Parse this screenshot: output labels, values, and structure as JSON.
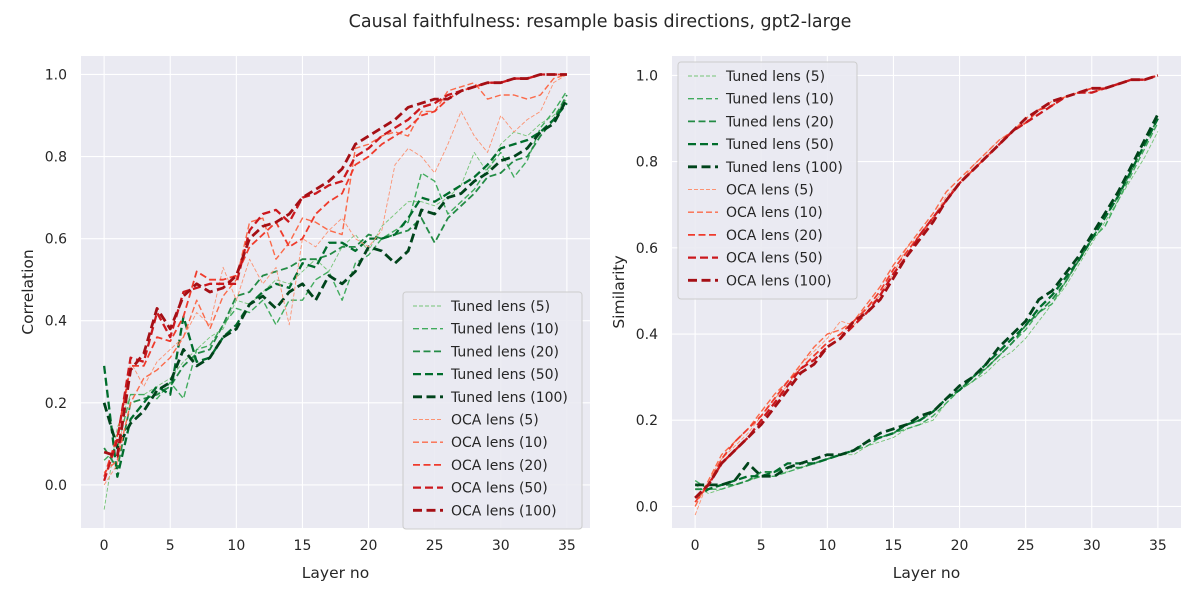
{
  "figure": {
    "suptitle": "Causal faithfulness: resample basis directions, gpt2-large"
  },
  "chart_data": [
    {
      "type": "line",
      "title": "",
      "xlabel": "Layer no",
      "ylabel": "Correlation",
      "xlim": [
        -1.75,
        36.75
      ],
      "ylim": [
        -0.105,
        1.045
      ],
      "xticks": [
        0,
        5,
        10,
        15,
        20,
        25,
        30,
        35
      ],
      "xtick_labels": [
        "0",
        "5",
        "10",
        "15",
        "20",
        "25",
        "30",
        "35"
      ],
      "yticks": [
        0.0,
        0.2,
        0.4,
        0.6,
        0.8,
        1.0
      ],
      "ytick_labels": [
        "0.0",
        "0.2",
        "0.4",
        "0.6",
        "0.8",
        "1.0"
      ],
      "grid": true,
      "legend_position": "lower-right",
      "x": [
        0,
        1,
        2,
        3,
        4,
        5,
        6,
        7,
        8,
        9,
        10,
        11,
        12,
        13,
        14,
        15,
        16,
        17,
        18,
        19,
        20,
        21,
        22,
        23,
        24,
        25,
        26,
        27,
        28,
        29,
        30,
        31,
        32,
        33,
        34,
        35
      ],
      "series": [
        {
          "name": "Tuned lens (5)",
          "family": "tuned",
          "k": 5,
          "values": [
            -0.06,
            0.14,
            0.22,
            0.22,
            0.24,
            0.26,
            0.3,
            0.33,
            0.36,
            0.38,
            0.45,
            0.44,
            0.47,
            0.5,
            0.49,
            0.52,
            0.55,
            0.52,
            0.58,
            0.61,
            0.57,
            0.63,
            0.66,
            0.69,
            0.69,
            0.68,
            0.7,
            0.73,
            0.81,
            0.76,
            0.83,
            0.86,
            0.85,
            0.88,
            0.9,
            0.94
          ]
        },
        {
          "name": "Tuned lens (10)",
          "family": "tuned",
          "k": 10,
          "values": [
            0.06,
            0.09,
            0.22,
            0.22,
            0.21,
            0.25,
            0.21,
            0.33,
            0.34,
            0.39,
            0.43,
            0.42,
            0.45,
            0.39,
            0.45,
            0.45,
            0.5,
            0.52,
            0.45,
            0.54,
            0.56,
            0.6,
            0.62,
            0.64,
            0.76,
            0.74,
            0.66,
            0.69,
            0.72,
            0.77,
            0.81,
            0.75,
            0.79,
            0.87,
            0.91,
            0.96
          ]
        },
        {
          "name": "Tuned lens (20)",
          "family": "tuned",
          "k": 20,
          "values": [
            0.09,
            0.04,
            0.2,
            0.21,
            0.22,
            0.24,
            0.29,
            0.32,
            0.33,
            0.39,
            0.46,
            0.47,
            0.51,
            0.52,
            0.53,
            0.55,
            0.55,
            0.56,
            0.58,
            0.58,
            0.61,
            0.6,
            0.61,
            0.62,
            0.65,
            0.59,
            0.65,
            0.68,
            0.71,
            0.75,
            0.76,
            0.79,
            0.8,
            0.85,
            0.89,
            0.95
          ]
        },
        {
          "name": "Tuned lens (50)",
          "family": "tuned",
          "k": 50,
          "values": [
            0.29,
            0.02,
            0.16,
            0.2,
            0.24,
            0.22,
            0.41,
            0.3,
            0.31,
            0.36,
            0.39,
            0.44,
            0.47,
            0.49,
            0.48,
            0.54,
            0.53,
            0.59,
            0.59,
            0.57,
            0.6,
            0.6,
            0.61,
            0.65,
            0.7,
            0.69,
            0.71,
            0.73,
            0.75,
            0.78,
            0.82,
            0.83,
            0.84,
            0.86,
            0.89,
            0.93
          ]
        },
        {
          "name": "Tuned lens (100)",
          "family": "tuned",
          "k": 100,
          "values": [
            0.2,
            0.09,
            0.15,
            0.18,
            0.23,
            0.25,
            0.33,
            0.29,
            0.31,
            0.36,
            0.38,
            0.44,
            0.46,
            0.43,
            0.47,
            0.49,
            0.45,
            0.51,
            0.49,
            0.52,
            0.58,
            0.57,
            0.54,
            0.57,
            0.67,
            0.66,
            0.7,
            0.71,
            0.74,
            0.76,
            0.79,
            0.8,
            0.82,
            0.86,
            0.88,
            0.94
          ]
        },
        {
          "name": "OCA lens (5)",
          "family": "oca",
          "k": 5,
          "values": [
            0.0,
            0.05,
            0.3,
            0.24,
            0.3,
            0.33,
            0.36,
            0.42,
            0.39,
            0.53,
            0.45,
            0.55,
            0.49,
            0.53,
            0.39,
            0.6,
            0.58,
            0.62,
            0.65,
            0.6,
            0.58,
            0.62,
            0.78,
            0.82,
            0.8,
            0.76,
            0.83,
            0.91,
            0.85,
            0.81,
            0.9,
            0.86,
            0.89,
            0.91,
            0.98,
            1.0
          ]
        },
        {
          "name": "OCA lens (10)",
          "family": "oca",
          "k": 10,
          "values": [
            0.03,
            0.06,
            0.2,
            0.26,
            0.28,
            0.31,
            0.36,
            0.45,
            0.38,
            0.46,
            0.5,
            0.64,
            0.65,
            0.55,
            0.59,
            0.65,
            0.64,
            0.62,
            0.61,
            0.82,
            0.83,
            0.85,
            0.86,
            0.85,
            0.91,
            0.91,
            0.96,
            0.97,
            0.98,
            0.94,
            0.95,
            0.95,
            0.94,
            0.95,
            0.99,
            1.0
          ]
        },
        {
          "name": "OCA lens (20)",
          "family": "oca",
          "k": 20,
          "values": [
            0.02,
            0.12,
            0.29,
            0.29,
            0.36,
            0.35,
            0.41,
            0.52,
            0.5,
            0.5,
            0.51,
            0.58,
            0.61,
            0.64,
            0.58,
            0.6,
            0.66,
            0.69,
            0.71,
            0.78,
            0.8,
            0.83,
            0.85,
            0.87,
            0.9,
            0.91,
            0.94,
            0.96,
            0.97,
            0.98,
            0.98,
            0.99,
            0.99,
            1.0,
            1.0,
            1.0
          ]
        },
        {
          "name": "OCA lens (50)",
          "family": "oca",
          "k": 50,
          "values": [
            0.01,
            0.11,
            0.31,
            0.3,
            0.42,
            0.36,
            0.47,
            0.48,
            0.49,
            0.49,
            0.49,
            0.62,
            0.66,
            0.67,
            0.64,
            0.7,
            0.71,
            0.73,
            0.74,
            0.8,
            0.82,
            0.85,
            0.87,
            0.89,
            0.92,
            0.93,
            0.95,
            0.96,
            0.97,
            0.98,
            0.98,
            0.99,
            0.99,
            1.0,
            1.0,
            1.0
          ]
        },
        {
          "name": "OCA lens (100)",
          "family": "oca",
          "k": 100,
          "values": [
            0.08,
            0.07,
            0.28,
            0.32,
            0.43,
            0.38,
            0.46,
            0.49,
            0.47,
            0.48,
            0.51,
            0.6,
            0.63,
            0.64,
            0.66,
            0.7,
            0.72,
            0.74,
            0.77,
            0.83,
            0.85,
            0.87,
            0.89,
            0.92,
            0.93,
            0.94,
            0.94,
            0.96,
            0.97,
            0.98,
            0.98,
            0.99,
            0.99,
            1.0,
            1.0,
            1.0
          ]
        }
      ]
    },
    {
      "type": "line",
      "title": "",
      "xlabel": "Layer no",
      "ylabel": "Similarity",
      "xlim": [
        -1.75,
        36.75
      ],
      "ylim": [
        -0.05,
        1.045
      ],
      "xticks": [
        0,
        5,
        10,
        15,
        20,
        25,
        30,
        35
      ],
      "xtick_labels": [
        "0",
        "5",
        "10",
        "15",
        "20",
        "25",
        "30",
        "35"
      ],
      "yticks": [
        0.0,
        0.2,
        0.4,
        0.6,
        0.8,
        1.0
      ],
      "ytick_labels": [
        "0.0",
        "0.2",
        "0.4",
        "0.6",
        "0.8",
        "1.0"
      ],
      "grid": true,
      "legend_position": "upper-left",
      "x": [
        0,
        1,
        2,
        3,
        4,
        5,
        6,
        7,
        8,
        9,
        10,
        11,
        12,
        13,
        14,
        15,
        16,
        17,
        18,
        19,
        20,
        21,
        22,
        23,
        24,
        25,
        26,
        27,
        28,
        29,
        30,
        31,
        32,
        33,
        34,
        35
      ],
      "series": [
        {
          "name": "Tuned lens (5)",
          "family": "tuned",
          "k": 5,
          "values": [
            0.05,
            0.03,
            0.04,
            0.05,
            0.06,
            0.07,
            0.08,
            0.08,
            0.09,
            0.1,
            0.11,
            0.12,
            0.12,
            0.14,
            0.15,
            0.16,
            0.18,
            0.19,
            0.2,
            0.24,
            0.27,
            0.29,
            0.31,
            0.34,
            0.36,
            0.39,
            0.43,
            0.47,
            0.51,
            0.56,
            0.61,
            0.66,
            0.71,
            0.76,
            0.81,
            0.87
          ]
        },
        {
          "name": "Tuned lens (10)",
          "family": "tuned",
          "k": 10,
          "values": [
            0.06,
            0.04,
            0.04,
            0.05,
            0.06,
            0.07,
            0.07,
            0.08,
            0.09,
            0.1,
            0.11,
            0.12,
            0.13,
            0.14,
            0.16,
            0.17,
            0.18,
            0.19,
            0.21,
            0.24,
            0.27,
            0.29,
            0.32,
            0.35,
            0.38,
            0.41,
            0.45,
            0.47,
            0.52,
            0.57,
            0.62,
            0.65,
            0.71,
            0.77,
            0.83,
            0.89
          ]
        },
        {
          "name": "Tuned lens (20)",
          "family": "tuned",
          "k": 20,
          "values": [
            0.04,
            0.04,
            0.05,
            0.05,
            0.06,
            0.08,
            0.08,
            0.09,
            0.09,
            0.1,
            0.11,
            0.12,
            0.13,
            0.15,
            0.16,
            0.17,
            0.19,
            0.2,
            0.22,
            0.25,
            0.27,
            0.3,
            0.32,
            0.35,
            0.38,
            0.42,
            0.45,
            0.48,
            0.52,
            0.57,
            0.62,
            0.67,
            0.72,
            0.78,
            0.84,
            0.9
          ]
        },
        {
          "name": "Tuned lens (50)",
          "family": "tuned",
          "k": 50,
          "values": [
            0.02,
            0.04,
            0.05,
            0.06,
            0.07,
            0.07,
            0.08,
            0.1,
            0.1,
            0.1,
            0.11,
            0.12,
            0.13,
            0.15,
            0.16,
            0.17,
            0.19,
            0.2,
            0.22,
            0.25,
            0.27,
            0.3,
            0.33,
            0.36,
            0.39,
            0.42,
            0.46,
            0.49,
            0.53,
            0.57,
            0.62,
            0.67,
            0.72,
            0.78,
            0.84,
            0.9
          ]
        },
        {
          "name": "Tuned lens (100)",
          "family": "tuned",
          "k": 100,
          "values": [
            0.05,
            0.05,
            0.05,
            0.06,
            0.1,
            0.07,
            0.07,
            0.09,
            0.1,
            0.11,
            0.12,
            0.12,
            0.13,
            0.15,
            0.17,
            0.18,
            0.19,
            0.21,
            0.22,
            0.25,
            0.28,
            0.3,
            0.33,
            0.37,
            0.4,
            0.43,
            0.48,
            0.5,
            0.54,
            0.58,
            0.63,
            0.68,
            0.73,
            0.79,
            0.85,
            0.91
          ]
        },
        {
          "name": "OCA lens (5)",
          "family": "oca",
          "k": 5,
          "values": [
            -0.02,
            0.06,
            0.11,
            0.14,
            0.17,
            0.21,
            0.25,
            0.28,
            0.33,
            0.36,
            0.39,
            0.43,
            0.42,
            0.46,
            0.49,
            0.54,
            0.6,
            0.63,
            0.67,
            0.72,
            0.75,
            0.79,
            0.82,
            0.85,
            0.87,
            0.89,
            0.92,
            0.94,
            0.95,
            0.96,
            0.96,
            0.97,
            0.98,
            0.99,
            0.99,
            1.0
          ]
        },
        {
          "name": "OCA lens (10)",
          "family": "oca",
          "k": 10,
          "values": [
            0.0,
            0.06,
            0.12,
            0.15,
            0.18,
            0.22,
            0.26,
            0.29,
            0.33,
            0.37,
            0.4,
            0.41,
            0.43,
            0.47,
            0.51,
            0.56,
            0.6,
            0.64,
            0.68,
            0.73,
            0.76,
            0.79,
            0.82,
            0.85,
            0.87,
            0.9,
            0.92,
            0.94,
            0.95,
            0.96,
            0.96,
            0.97,
            0.98,
            0.99,
            0.99,
            1.0
          ]
        },
        {
          "name": "OCA lens (20)",
          "family": "oca",
          "k": 20,
          "values": [
            0.01,
            0.05,
            0.11,
            0.15,
            0.18,
            0.21,
            0.25,
            0.29,
            0.32,
            0.35,
            0.38,
            0.4,
            0.43,
            0.46,
            0.5,
            0.55,
            0.59,
            0.63,
            0.67,
            0.71,
            0.75,
            0.78,
            0.81,
            0.84,
            0.87,
            0.89,
            0.92,
            0.93,
            0.95,
            0.96,
            0.97,
            0.97,
            0.98,
            0.99,
            0.99,
            1.0
          ]
        },
        {
          "name": "OCA lens (50)",
          "family": "oca",
          "k": 50,
          "values": [
            0.02,
            0.05,
            0.1,
            0.13,
            0.16,
            0.2,
            0.24,
            0.28,
            0.32,
            0.34,
            0.37,
            0.39,
            0.42,
            0.45,
            0.49,
            0.54,
            0.58,
            0.63,
            0.67,
            0.71,
            0.75,
            0.78,
            0.81,
            0.84,
            0.87,
            0.89,
            0.91,
            0.93,
            0.95,
            0.96,
            0.96,
            0.97,
            0.98,
            0.99,
            0.99,
            1.0
          ]
        },
        {
          "name": "OCA lens (100)",
          "family": "oca",
          "k": 100,
          "values": [
            0.02,
            0.05,
            0.1,
            0.13,
            0.16,
            0.19,
            0.23,
            0.27,
            0.31,
            0.33,
            0.37,
            0.39,
            0.43,
            0.45,
            0.48,
            0.53,
            0.58,
            0.62,
            0.66,
            0.71,
            0.75,
            0.78,
            0.81,
            0.84,
            0.87,
            0.9,
            0.92,
            0.94,
            0.95,
            0.96,
            0.97,
            0.97,
            0.98,
            0.99,
            0.99,
            1.0
          ]
        }
      ]
    }
  ],
  "colors": {
    "background": "#ffffff",
    "plot_background": "#eaeaf2",
    "grid": "#ffffff",
    "legend_background": "#eaeaf2",
    "legend_border": "#cccccc",
    "tuned": [
      "#74c476",
      "#41ab5d",
      "#238b45",
      "#006d2c",
      "#00441b"
    ],
    "oca": [
      "#fc9272",
      "#fb6a4a",
      "#ef3b2c",
      "#cb181d",
      "#a50f15"
    ]
  }
}
